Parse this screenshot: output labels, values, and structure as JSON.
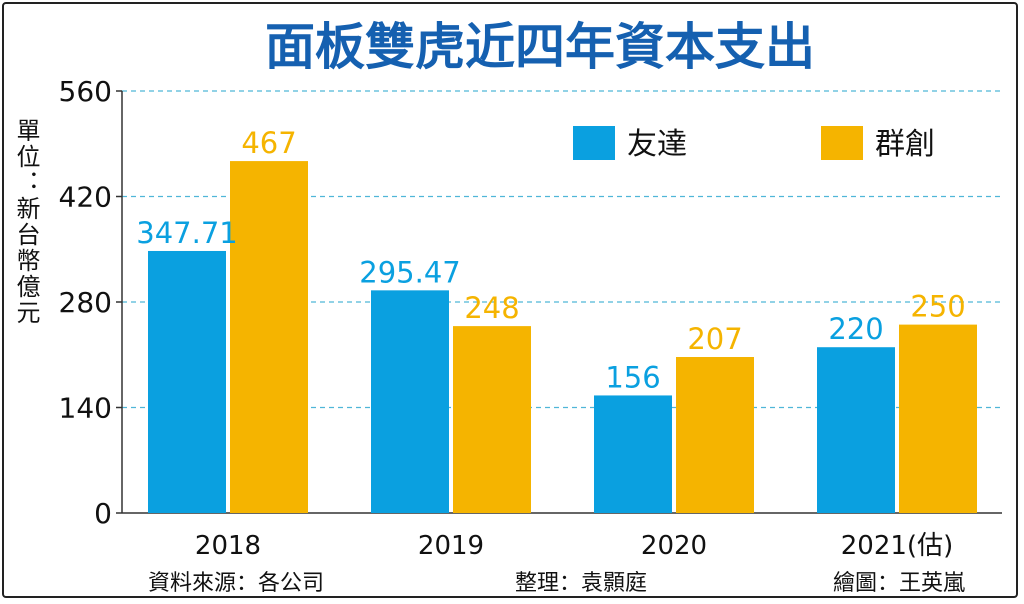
{
  "chart_data": {
    "type": "bar",
    "title": "面板雙虎近四年資本支出",
    "ylabel": "單位：新台幣億元",
    "categories": [
      "2018",
      "2019",
      "2020",
      "2021(估)"
    ],
    "series": [
      {
        "name": "友達",
        "color": "#0aa0e0",
        "values": [
          347.71,
          295.47,
          156,
          220
        ],
        "labels": [
          "347.71",
          "295.47",
          "156",
          "220"
        ]
      },
      {
        "name": "群創",
        "color": "#f5b400",
        "values": [
          467,
          248,
          207,
          250
        ],
        "labels": [
          "467",
          "248",
          "207",
          "250"
        ]
      }
    ],
    "yticks": [
      0,
      140,
      280,
      420,
      560
    ],
    "ylim": [
      0,
      560
    ],
    "grid": true,
    "legend": "top-right"
  },
  "footer": {
    "source": "資料來源：各公司",
    "editor": "整理：袁顥庭",
    "artist": "繪圖：王英嵐"
  },
  "colors": {
    "title": "#1560b0",
    "grid": "#4fb6d8",
    "axis": "#333333"
  }
}
